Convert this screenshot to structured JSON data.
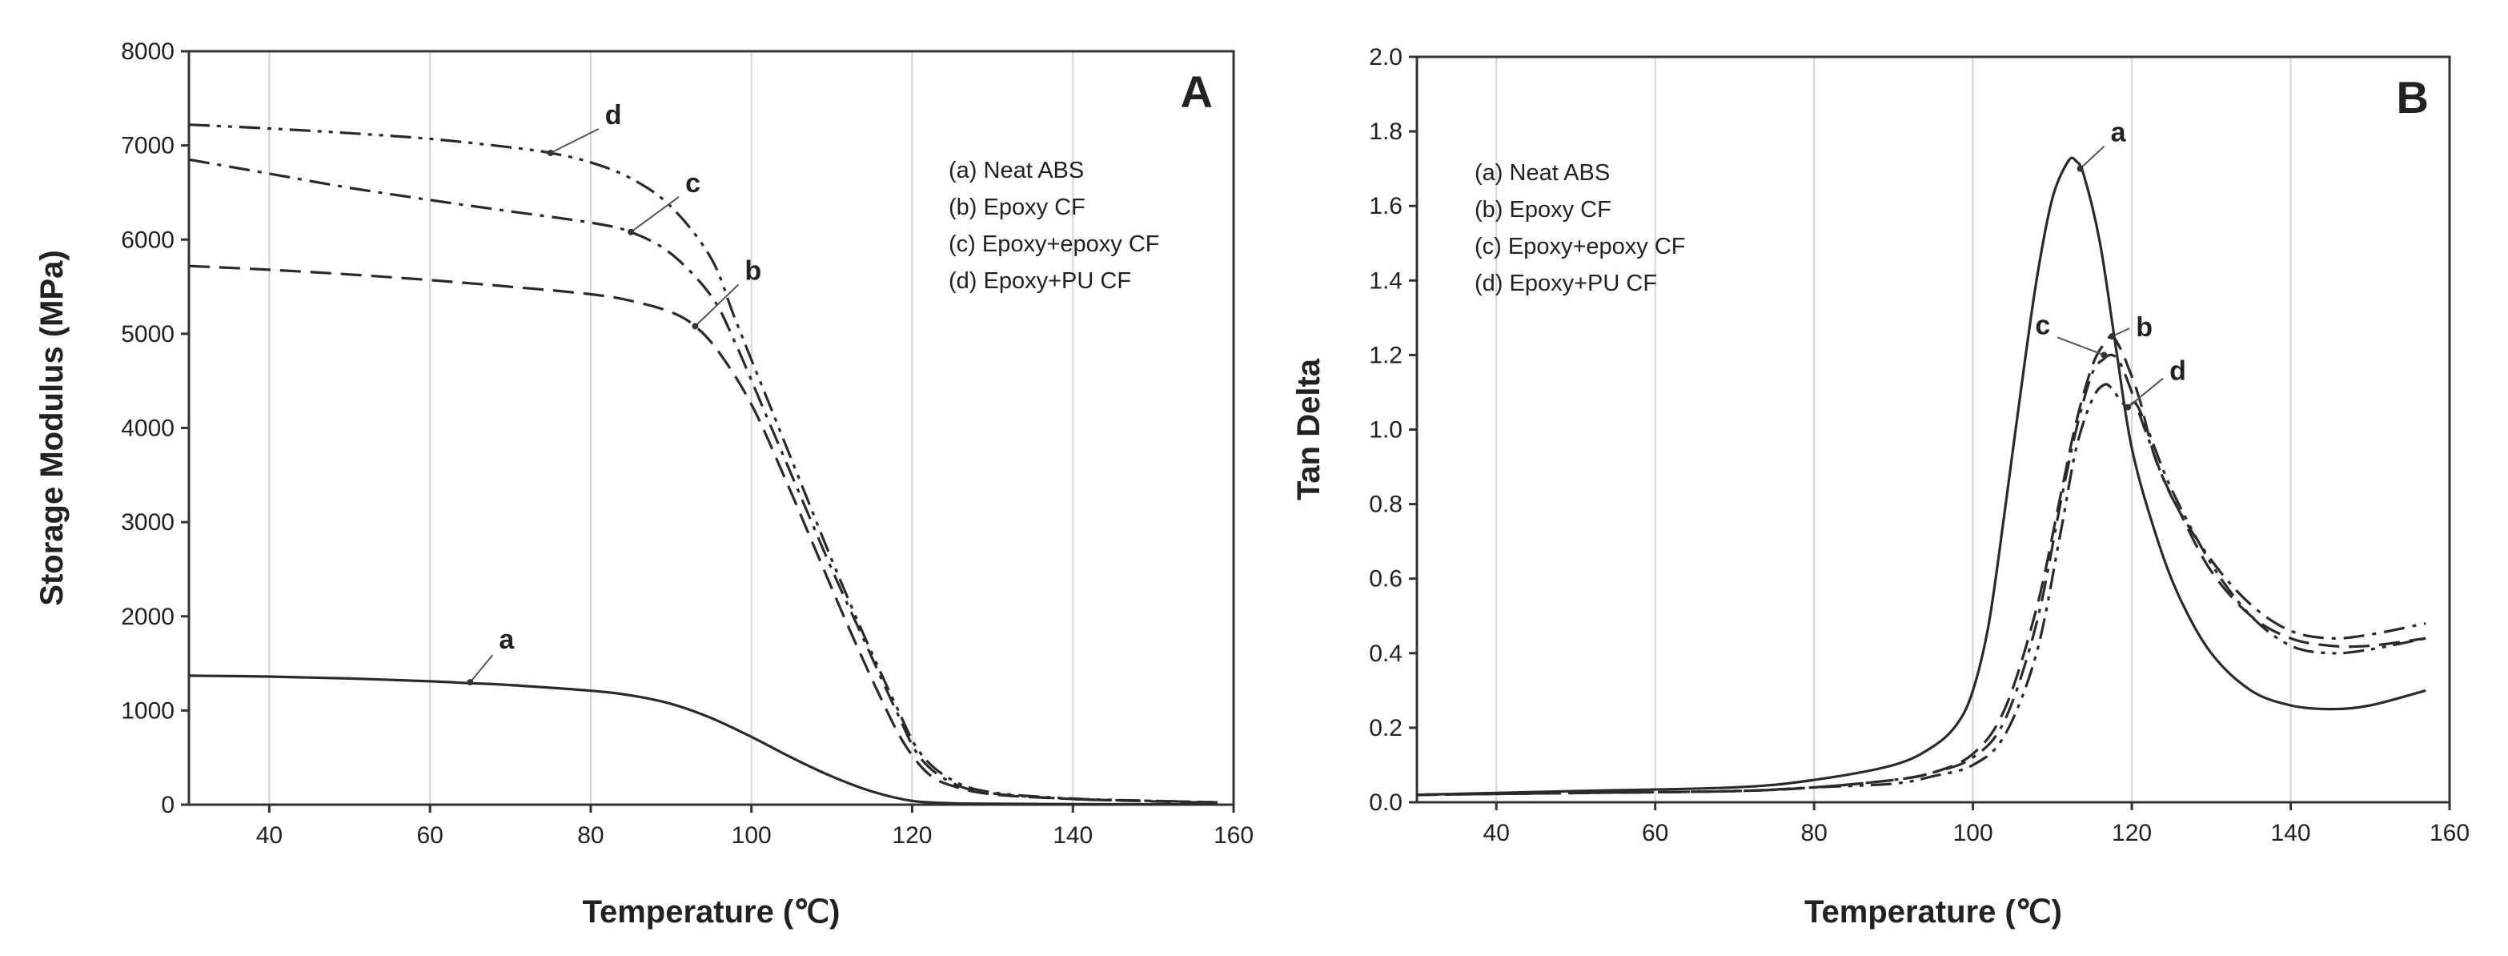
{
  "chart_data": [
    {
      "id": "A",
      "type": "line",
      "panel_label": "A",
      "xlabel": "Temperature (℃)",
      "ylabel": "Storage Modulus (MPa)",
      "xlim": [
        30,
        160
      ],
      "ylim": [
        0,
        8000
      ],
      "xticks": [
        40,
        60,
        80,
        100,
        120,
        140,
        160
      ],
      "yticks": [
        0,
        1000,
        2000,
        3000,
        4000,
        5000,
        6000,
        7000,
        8000
      ],
      "grid": "vertical",
      "legend_position": "top-right",
      "legend": [
        "(a) Neat ABS",
        "(b) Epoxy CF",
        "(c) Epoxy+epoxy CF",
        "(d) Epoxy+PU CF"
      ],
      "series": [
        {
          "name": "a",
          "style": "solid",
          "x": [
            30,
            40,
            50,
            60,
            65,
            70,
            80,
            85,
            90,
            95,
            100,
            105,
            110,
            115,
            120,
            125,
            130,
            140,
            150,
            158
          ],
          "y": [
            1370,
            1360,
            1340,
            1310,
            1290,
            1270,
            1210,
            1160,
            1070,
            920,
            720,
            500,
            300,
            140,
            40,
            15,
            10,
            5,
            3,
            2
          ]
        },
        {
          "name": "b",
          "style": "long-dash",
          "x": [
            30,
            40,
            50,
            60,
            70,
            80,
            85,
            90,
            93,
            96,
            100,
            104,
            108,
            112,
            116,
            119,
            122,
            125,
            130,
            140,
            150,
            158
          ],
          "y": [
            5720,
            5680,
            5630,
            5570,
            5500,
            5420,
            5350,
            5230,
            5080,
            4800,
            4250,
            3500,
            2700,
            1900,
            1150,
            650,
            330,
            200,
            110,
            60,
            35,
            20
          ]
        },
        {
          "name": "c",
          "style": "dash-dot",
          "x": [
            30,
            40,
            50,
            60,
            70,
            80,
            85,
            90,
            95,
            98,
            102,
            106,
            110,
            114,
            118,
            121,
            125,
            130,
            140,
            150,
            158
          ],
          "y": [
            6850,
            6700,
            6550,
            6420,
            6300,
            6180,
            6080,
            5850,
            5400,
            4900,
            4100,
            3300,
            2500,
            1750,
            1000,
            500,
            230,
            120,
            60,
            40,
            25
          ]
        },
        {
          "name": "d",
          "style": "dash-dot-dot",
          "x": [
            30,
            40,
            50,
            60,
            70,
            75,
            80,
            85,
            90,
            95,
            98,
            102,
            106,
            110,
            114,
            118,
            121,
            125,
            130,
            140,
            150,
            158
          ],
          "y": [
            7220,
            7180,
            7130,
            7070,
            6980,
            6920,
            6820,
            6650,
            6350,
            5800,
            5150,
            4300,
            3450,
            2600,
            1800,
            1050,
            550,
            260,
            130,
            65,
            40,
            25
          ]
        }
      ],
      "annotations": [
        {
          "text": "a",
          "at": [
            65,
            1300
          ]
        },
        {
          "text": "b",
          "at": [
            93,
            5080
          ]
        },
        {
          "text": "c",
          "at": [
            85,
            6080
          ]
        },
        {
          "text": "d",
          "at": [
            75,
            6920
          ]
        }
      ]
    },
    {
      "id": "B",
      "type": "line",
      "panel_label": "B",
      "xlabel": "Temperature (℃)",
      "ylabel": "Tan Delta",
      "xlim": [
        30,
        160
      ],
      "ylim": [
        0,
        2.0
      ],
      "xticks": [
        40,
        60,
        80,
        100,
        120,
        140,
        160
      ],
      "yticks": [
        0.0,
        0.2,
        0.4,
        0.6,
        0.8,
        1.0,
        1.2,
        1.4,
        1.6,
        1.8,
        2.0
      ],
      "grid": "vertical",
      "legend_position": "top-left",
      "legend": [
        "(a) Neat ABS",
        "(b) Epoxy CF",
        "(c) Epoxy+epoxy CF",
        "(d) Epoxy+PU CF"
      ],
      "series": [
        {
          "name": "a",
          "style": "solid",
          "x": [
            30,
            50,
            70,
            80,
            90,
            95,
            98,
            100,
            102,
            104,
            106,
            108,
            110,
            112,
            113,
            114,
            116,
            118,
            120,
            123,
            126,
            130,
            135,
            140,
            145,
            150,
            157
          ],
          "y": [
            0.02,
            0.03,
            0.04,
            0.06,
            0.1,
            0.15,
            0.21,
            0.3,
            0.48,
            0.78,
            1.1,
            1.4,
            1.62,
            1.72,
            1.72,
            1.68,
            1.5,
            1.22,
            0.95,
            0.72,
            0.55,
            0.4,
            0.3,
            0.26,
            0.25,
            0.26,
            0.3
          ]
        },
        {
          "name": "b",
          "style": "long-dash",
          "x": [
            30,
            50,
            70,
            80,
            90,
            95,
            100,
            104,
            108,
            111,
            113,
            115,
            116.5,
            117.5,
            118.5,
            119.5,
            121,
            123,
            126,
            130,
            135,
            140,
            145,
            150,
            157
          ],
          "y": [
            0.02,
            0.025,
            0.03,
            0.04,
            0.06,
            0.08,
            0.13,
            0.25,
            0.52,
            0.82,
            1.02,
            1.17,
            1.23,
            1.25,
            1.22,
            1.17,
            1.08,
            0.92,
            0.78,
            0.62,
            0.5,
            0.44,
            0.42,
            0.42,
            0.44
          ]
        },
        {
          "name": "c",
          "style": "dash-dot",
          "x": [
            30,
            50,
            70,
            80,
            90,
            95,
            100,
            104,
            108,
            111,
            113,
            115,
            116.5,
            117.5,
            118.5,
            120,
            122,
            125,
            130,
            135,
            140,
            145,
            150,
            157
          ],
          "y": [
            0.02,
            0.025,
            0.03,
            0.04,
            0.06,
            0.08,
            0.12,
            0.22,
            0.48,
            0.8,
            1.0,
            1.15,
            1.19,
            1.2,
            1.18,
            1.1,
            0.98,
            0.82,
            0.65,
            0.53,
            0.46,
            0.44,
            0.45,
            0.48
          ]
        },
        {
          "name": "d",
          "style": "dash-dot-dot",
          "x": [
            30,
            50,
            70,
            80,
            90,
            95,
            100,
            104,
            108,
            111,
            113,
            115,
            116.5,
            117.5,
            118.5,
            119.5,
            120.5,
            122,
            125,
            130,
            135,
            140,
            145,
            150,
            157
          ],
          "y": [
            0.02,
            0.025,
            0.03,
            0.04,
            0.05,
            0.07,
            0.1,
            0.18,
            0.4,
            0.72,
            0.95,
            1.08,
            1.12,
            1.11,
            1.08,
            1.06,
            1.07,
            1.0,
            0.84,
            0.64,
            0.5,
            0.42,
            0.4,
            0.41,
            0.44
          ]
        }
      ],
      "annotations": [
        {
          "text": "a",
          "at": [
            113.5,
            1.7
          ]
        },
        {
          "text": "b",
          "at": [
            117.5,
            1.25
          ]
        },
        {
          "text": "c",
          "at": [
            116.5,
            1.2
          ]
        },
        {
          "text": "d",
          "at": [
            119.5,
            1.06
          ]
        }
      ]
    }
  ]
}
